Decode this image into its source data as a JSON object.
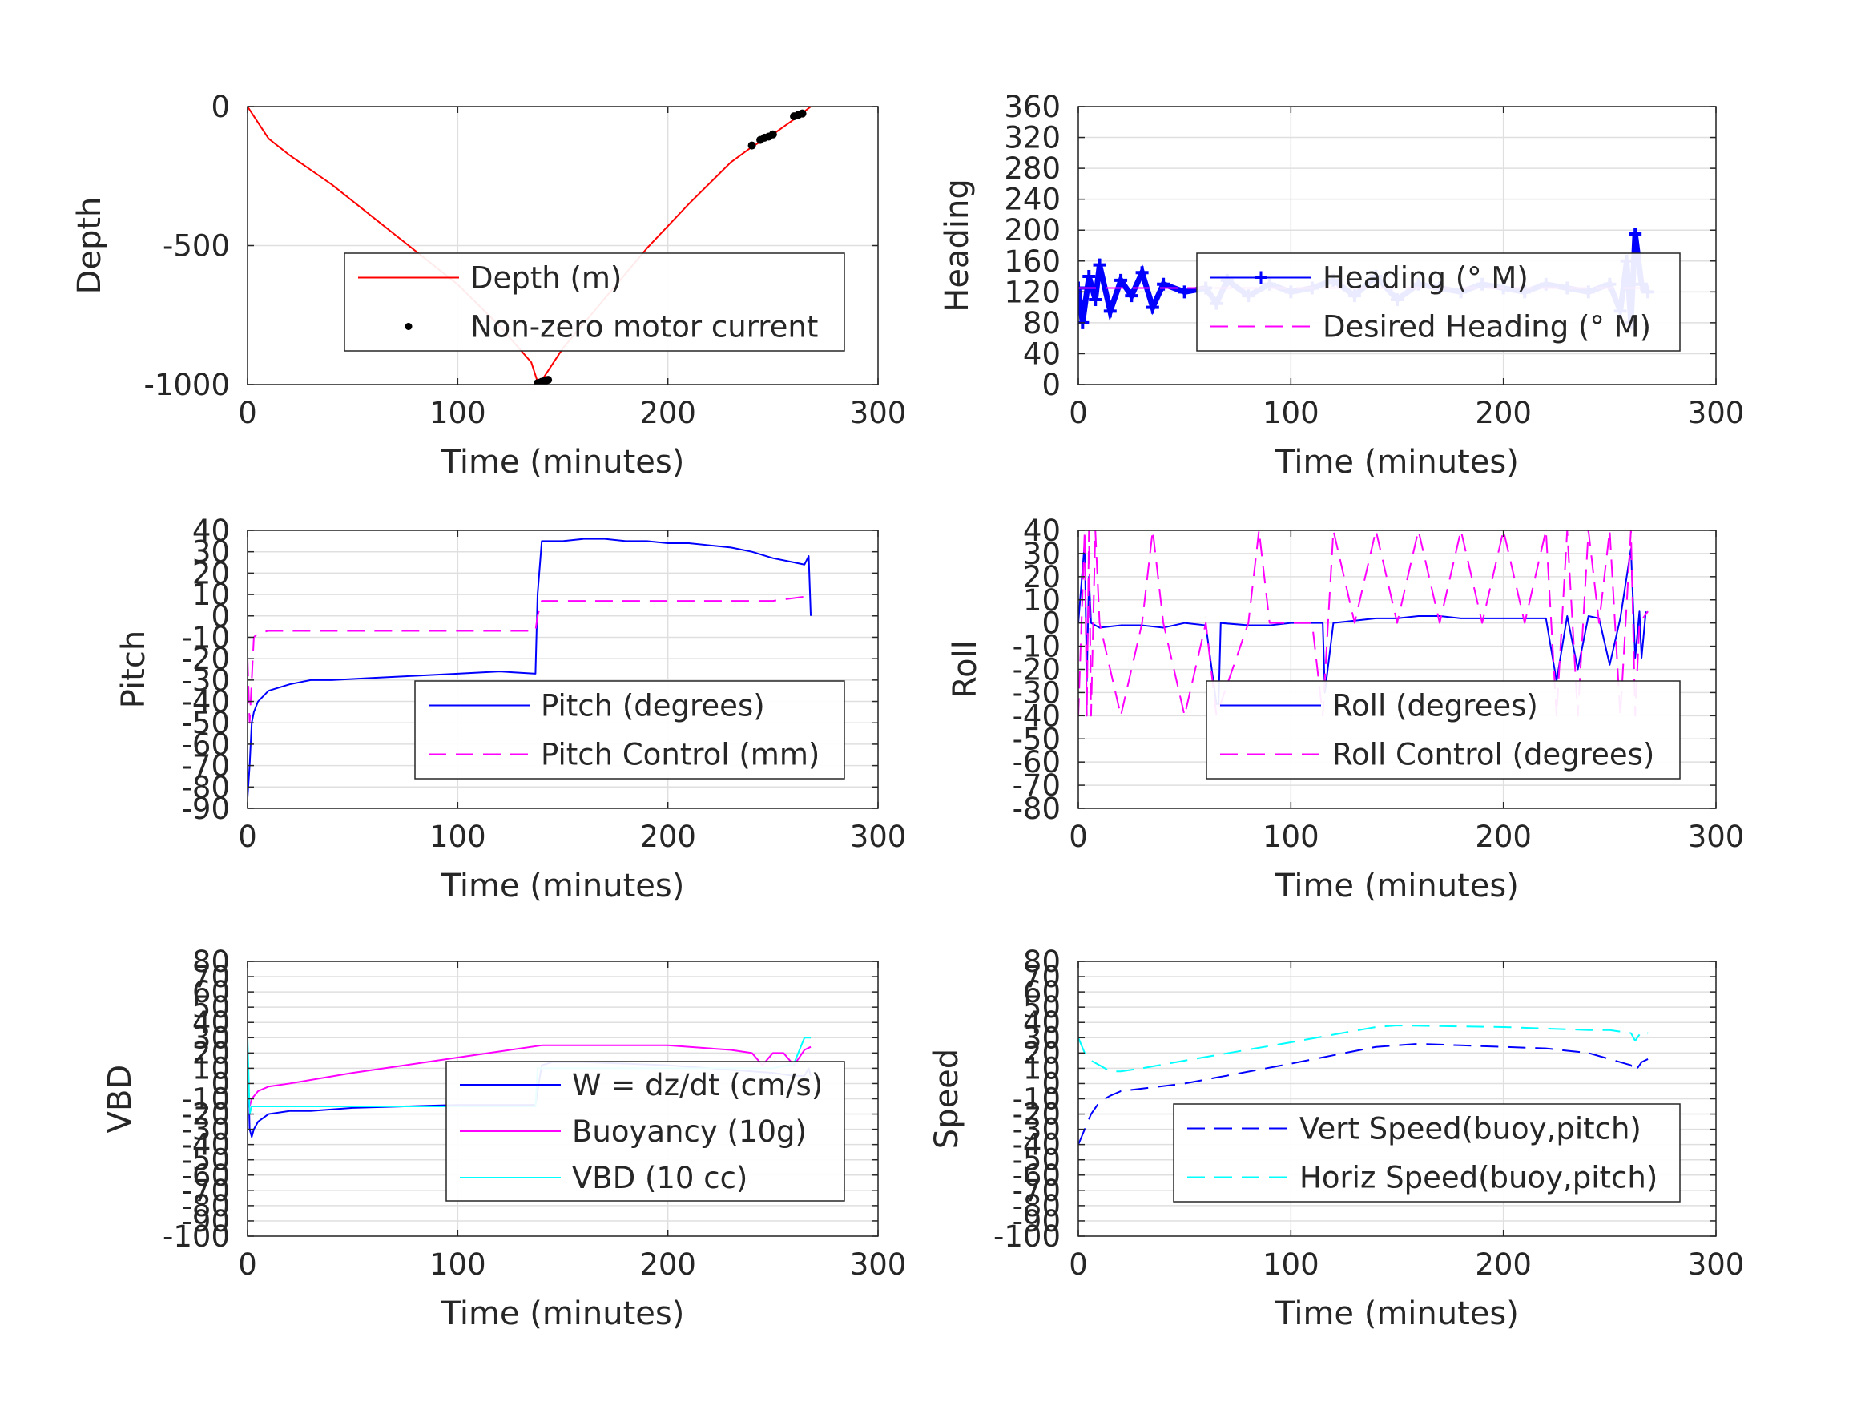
{
  "chart_data": [
    {
      "type": "line",
      "panel": "depth",
      "xlabel": "Time (minutes)",
      "ylabel": "Depth",
      "xlim": [
        0,
        300
      ],
      "ylim": [
        -1000,
        0
      ],
      "xticks": [
        0,
        100,
        200,
        300
      ],
      "yticks": [
        -1000,
        -500,
        0
      ],
      "grid": true,
      "legend_position": "center",
      "series": [
        {
          "name": "Depth (m)",
          "style": "solid",
          "color": "#ff0000",
          "x": [
            0,
            10,
            20,
            40,
            60,
            80,
            100,
            120,
            135,
            138,
            140,
            150,
            170,
            190,
            210,
            230,
            240,
            250,
            262,
            268
          ],
          "y": [
            0,
            -115,
            -175,
            -280,
            -400,
            -520,
            -640,
            -790,
            -920,
            -990,
            -985,
            -870,
            -690,
            -510,
            -350,
            -200,
            -145,
            -100,
            -35,
            0
          ]
        },
        {
          "name": "Non-zero motor current",
          "style": "marker",
          "color": "#000000",
          "x": [
            138,
            139,
            140,
            141,
            142,
            143,
            240,
            244,
            246,
            248,
            250,
            260,
            262,
            264
          ],
          "y": [
            -995,
            -993,
            -990,
            -988,
            -985,
            -983,
            -140,
            -120,
            -112,
            -108,
            -100,
            -35,
            -30,
            -25
          ]
        }
      ]
    },
    {
      "type": "line",
      "panel": "heading",
      "xlabel": "Time (minutes)",
      "ylabel": "Heading",
      "xlim": [
        0,
        300
      ],
      "ylim": [
        0,
        360
      ],
      "xticks": [
        0,
        100,
        200,
        300
      ],
      "yticks": [
        0,
        40,
        80,
        120,
        160,
        200,
        240,
        280,
        320,
        360
      ],
      "grid": true,
      "legend_position": "top-right",
      "series": [
        {
          "name": "Heading (° M)",
          "style": "plus-marker",
          "color": "#0000ff",
          "x": [
            0,
            2,
            5,
            8,
            10,
            15,
            20,
            25,
            30,
            35,
            40,
            50,
            60,
            65,
            70,
            80,
            90,
            100,
            110,
            120,
            130,
            140,
            150,
            160,
            170,
            180,
            190,
            200,
            210,
            220,
            230,
            240,
            250,
            255,
            258,
            260,
            262,
            265,
            268
          ],
          "y": [
            125,
            80,
            140,
            110,
            155,
            95,
            135,
            115,
            145,
            100,
            130,
            120,
            125,
            105,
            135,
            115,
            130,
            120,
            125,
            135,
            115,
            140,
            110,
            130,
            125,
            120,
            130,
            125,
            120,
            130,
            125,
            120,
            130,
            95,
            160,
            80,
            195,
            130,
            120
          ]
        },
        {
          "name": "Desired Heading (° M)",
          "style": "dashed",
          "color": "#ff00ff",
          "x": [
            0,
            268
          ],
          "y": [
            125,
            125
          ]
        }
      ]
    },
    {
      "type": "line",
      "panel": "pitch",
      "xlabel": "Time (minutes)",
      "ylabel": "Pitch",
      "xlim": [
        0,
        300
      ],
      "ylim": [
        -90,
        40
      ],
      "xticks": [
        0,
        100,
        200,
        300
      ],
      "yticks": [
        -90,
        -80,
        -70,
        -60,
        -50,
        -40,
        -30,
        -20,
        -10,
        0,
        10,
        20,
        30,
        40
      ],
      "grid": true,
      "legend_position": "center-right",
      "series": [
        {
          "name": "Pitch (degrees)",
          "style": "solid",
          "color": "#0000ff",
          "x": [
            0,
            1,
            2,
            3,
            5,
            10,
            20,
            30,
            40,
            60,
            80,
            100,
            120,
            137,
            138,
            140,
            150,
            160,
            170,
            180,
            190,
            200,
            210,
            220,
            230,
            240,
            250,
            260,
            265,
            267,
            268
          ],
          "y": [
            -85,
            -70,
            -50,
            -45,
            -40,
            -35,
            -32,
            -30,
            -30,
            -29,
            -28,
            -27,
            -26,
            -27,
            10,
            35,
            35,
            36,
            36,
            35,
            35,
            34,
            34,
            33,
            32,
            30,
            27,
            25,
            24,
            28,
            0
          ]
        },
        {
          "name": "Pitch Control (mm)",
          "style": "dashed",
          "color": "#ff00ff",
          "x": [
            0,
            1,
            2,
            3,
            5,
            10,
            50,
            100,
            137,
            138,
            140,
            150,
            200,
            250,
            265,
            268
          ],
          "y": [
            -20,
            -50,
            -30,
            -10,
            -8,
            -7,
            -7,
            -7,
            -7,
            0,
            7,
            7,
            7,
            7,
            9,
            10
          ]
        }
      ]
    },
    {
      "type": "line",
      "panel": "roll",
      "xlabel": "Time (minutes)",
      "ylabel": "Roll",
      "xlim": [
        0,
        300
      ],
      "ylim": [
        -80,
        40
      ],
      "xticks": [
        0,
        100,
        200,
        300
      ],
      "yticks": [
        -80,
        -70,
        -60,
        -50,
        -40,
        -30,
        -20,
        -10,
        0,
        10,
        20,
        30,
        40
      ],
      "grid": true,
      "legend_position": "center-right",
      "series": [
        {
          "name": "Roll (degrees)",
          "style": "solid",
          "color": "#0000ff",
          "x": [
            0,
            3,
            4,
            5,
            6,
            10,
            20,
            30,
            40,
            50,
            60,
            65,
            66,
            67,
            80,
            90,
            100,
            110,
            115,
            116,
            120,
            130,
            140,
            150,
            160,
            170,
            180,
            190,
            200,
            210,
            220,
            225,
            230,
            235,
            240,
            245,
            250,
            255,
            260,
            262,
            264,
            265,
            267
          ],
          "y": [
            0,
            35,
            -25,
            20,
            0,
            -2,
            -1,
            -1,
            -2,
            0,
            -1,
            -35,
            -35,
            0,
            -1,
            -1,
            0,
            0,
            0,
            -30,
            0,
            1,
            2,
            2,
            3,
            3,
            2,
            2,
            2,
            2,
            2,
            -25,
            3,
            -20,
            3,
            2,
            -18,
            2,
            32,
            -15,
            5,
            -15,
            5
          ]
        },
        {
          "name": "Roll Control (degrees)",
          "style": "dashed",
          "color": "#ff00ff",
          "x": [
            0,
            3,
            4,
            5,
            6,
            8,
            10,
            20,
            30,
            35,
            40,
            50,
            60,
            65,
            80,
            85,
            90,
            100,
            110,
            115,
            120,
            130,
            140,
            150,
            160,
            170,
            180,
            190,
            200,
            210,
            220,
            225,
            230,
            235,
            240,
            245,
            250,
            255,
            260,
            262,
            264,
            268
          ],
          "y": [
            -40,
            40,
            -40,
            40,
            -40,
            40,
            0,
            -40,
            0,
            40,
            0,
            -40,
            0,
            -40,
            0,
            40,
            0,
            0,
            0,
            -40,
            40,
            0,
            40,
            0,
            40,
            0,
            40,
            0,
            40,
            0,
            40,
            -40,
            40,
            -40,
            40,
            0,
            40,
            -40,
            40,
            -40,
            0,
            5
          ]
        }
      ]
    },
    {
      "type": "line",
      "panel": "vbd",
      "xlabel": "Time (minutes)",
      "ylabel": "VBD",
      "xlim": [
        0,
        300
      ],
      "ylim": [
        -100,
        80
      ],
      "xticks": [
        0,
        100,
        200,
        300
      ],
      "yticks": [
        -100,
        -90,
        -80,
        -70,
        -60,
        -50,
        -40,
        -30,
        -20,
        -10,
        0,
        10,
        20,
        30,
        40,
        50,
        60,
        70,
        80
      ],
      "ytick_labels": [
        "-100",
        "-90",
        "-80",
        "-70",
        "-60",
        "-50",
        "-40",
        "-30",
        "-20",
        "-10",
        "0",
        "10",
        "20",
        "30",
        "40",
        "50",
        "60",
        "70",
        "80"
      ],
      "grid": true,
      "legend_position": "center-right",
      "series": [
        {
          "name": "W = dz/dt (cm/s)",
          "style": "solid",
          "color": "#0000ff",
          "x": [
            0,
            1,
            2,
            3,
            5,
            10,
            20,
            30,
            50,
            100,
            137,
            138,
            140,
            145,
            160,
            180,
            200,
            220,
            240,
            250,
            260,
            265,
            267,
            268
          ],
          "y": [
            25,
            -30,
            -35,
            -30,
            -25,
            -20,
            -18,
            -18,
            -16,
            -14,
            -14,
            -5,
            12,
            14,
            14,
            13,
            12,
            10,
            8,
            7,
            5,
            5,
            10,
            5
          ]
        },
        {
          "name": "Buoyancy (10g)",
          "style": "solid",
          "color": "#ff00ff",
          "x": [
            0,
            2,
            5,
            10,
            20,
            50,
            100,
            140,
            150,
            200,
            230,
            240,
            245,
            250,
            255,
            260,
            265,
            268
          ],
          "y": [
            -20,
            -10,
            -5,
            -2,
            0,
            7,
            17,
            25,
            25,
            25,
            22,
            20,
            12,
            20,
            20,
            12,
            22,
            24
          ]
        },
        {
          "name": "VBD (10 cc)",
          "style": "solid",
          "color": "#00ffff",
          "x": [
            0,
            1,
            2,
            3,
            5,
            10,
            137,
            138,
            140,
            150,
            200,
            250,
            260,
            265,
            268
          ],
          "y": [
            30,
            -20,
            -15,
            -15,
            -15,
            -15,
            -15,
            10,
            10,
            10,
            10,
            10,
            13,
            30,
            30
          ]
        }
      ]
    },
    {
      "type": "line",
      "panel": "speed",
      "xlabel": "Time (minutes)",
      "ylabel": "Speed",
      "xlim": [
        0,
        300
      ],
      "ylim": [
        -100,
        80
      ],
      "xticks": [
        0,
        100,
        200,
        300
      ],
      "yticks": [
        -100,
        -90,
        -80,
        -70,
        -60,
        -50,
        -40,
        -30,
        -20,
        -10,
        0,
        10,
        20,
        30,
        40,
        50,
        60,
        70,
        80
      ],
      "ytick_labels": [
        "-100",
        "-90",
        "-80",
        "-70",
        "-60",
        "-50",
        "-40",
        "-30",
        "-20",
        "-10",
        "0",
        "10",
        "20",
        "30",
        "40",
        "50",
        "60",
        "70",
        "80"
      ],
      "grid": true,
      "legend_position": "center-right",
      "series": [
        {
          "name": "Vert Speed(buoy,pitch)",
          "style": "dashed",
          "color": "#0000ff",
          "x": [
            0,
            3,
            6,
            10,
            15,
            20,
            50,
            100,
            140,
            160,
            180,
            200,
            220,
            240,
            260,
            262,
            265,
            268
          ],
          "y": [
            -40,
            -30,
            -20,
            -12,
            -8,
            -5,
            0,
            13,
            24,
            26,
            25,
            24,
            23,
            20,
            12,
            8,
            14,
            16
          ]
        },
        {
          "name": "Horiz Speed(buoy,pitch)",
          "style": "dashed",
          "color": "#00ffff",
          "x": [
            0,
            3,
            6,
            10,
            15,
            20,
            30,
            50,
            100,
            140,
            150,
            200,
            240,
            250,
            260,
            262,
            265,
            268
          ],
          "y": [
            30,
            20,
            15,
            12,
            8,
            8,
            10,
            15,
            27,
            37,
            38,
            37,
            35,
            35,
            33,
            28,
            34,
            33
          ]
        }
      ]
    }
  ]
}
